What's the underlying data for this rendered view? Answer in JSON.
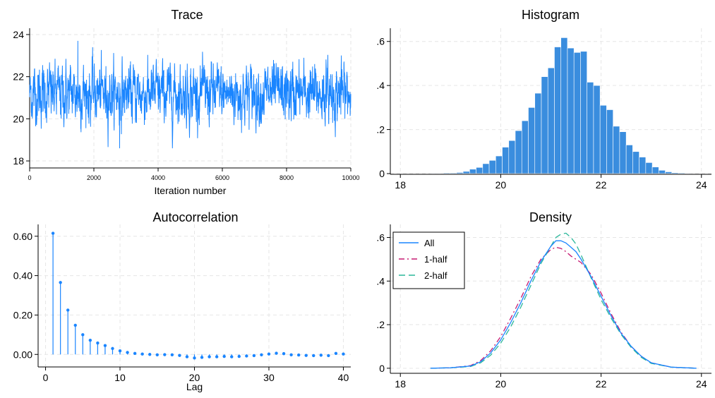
{
  "chart_data": [
    {
      "type": "line",
      "title": "Trace",
      "xlabel": "Iteration number",
      "ylabel": "",
      "xlim": [
        0,
        10000
      ],
      "ylim": [
        17.7,
        24.3
      ],
      "xticks": [
        0,
        2000,
        4000,
        6000,
        8000,
        10000
      ],
      "xtick_labels": [
        "0",
        "2000",
        "4000",
        "6000",
        "8000",
        "10000"
      ],
      "yticks": [
        18,
        20,
        22,
        24
      ],
      "ytick_labels": [
        "18",
        "20",
        "22",
        "24"
      ],
      "series": [
        {
          "color": "#1a85ff",
          "mean": 21.2,
          "min": 18.6,
          "max": 23.7,
          "n": 10000
        }
      ],
      "grid": true
    },
    {
      "type": "bar",
      "title": "Histogram",
      "xlabel": "",
      "ylabel": "",
      "xlim": [
        17.8,
        24.2
      ],
      "ylim": [
        0,
        0.66
      ],
      "xticks": [
        18,
        20,
        22,
        24
      ],
      "xtick_labels": [
        "18",
        "20",
        "22",
        "24"
      ],
      "yticks": [
        0,
        0.2,
        0.4,
        0.6
      ],
      "ytick_labels": [
        "0",
        ".2",
        ".4",
        ".6"
      ],
      "bins": [
        {
          "x0": 18.6,
          "x1": 18.73,
          "value": 0.002
        },
        {
          "x0": 18.73,
          "x1": 18.86,
          "value": 0.002
        },
        {
          "x0": 18.86,
          "x1": 18.99,
          "value": 0.003
        },
        {
          "x0": 18.99,
          "x1": 19.12,
          "value": 0.003
        },
        {
          "x0": 19.12,
          "x1": 19.25,
          "value": 0.005
        },
        {
          "x0": 19.25,
          "x1": 19.38,
          "value": 0.01
        },
        {
          "x0": 19.38,
          "x1": 19.51,
          "value": 0.02
        },
        {
          "x0": 19.51,
          "x1": 19.64,
          "value": 0.028
        },
        {
          "x0": 19.64,
          "x1": 19.77,
          "value": 0.045
        },
        {
          "x0": 19.77,
          "x1": 19.9,
          "value": 0.06
        },
        {
          "x0": 19.9,
          "x1": 20.03,
          "value": 0.08
        },
        {
          "x0": 20.03,
          "x1": 20.16,
          "value": 0.12
        },
        {
          "x0": 20.16,
          "x1": 20.29,
          "value": 0.15
        },
        {
          "x0": 20.29,
          "x1": 20.42,
          "value": 0.195
        },
        {
          "x0": 20.42,
          "x1": 20.55,
          "value": 0.24
        },
        {
          "x0": 20.55,
          "x1": 20.68,
          "value": 0.3
        },
        {
          "x0": 20.68,
          "x1": 20.81,
          "value": 0.365
        },
        {
          "x0": 20.81,
          "x1": 20.94,
          "value": 0.44
        },
        {
          "x0": 20.94,
          "x1": 21.07,
          "value": 0.48
        },
        {
          "x0": 21.07,
          "x1": 21.2,
          "value": 0.575
        },
        {
          "x0": 21.2,
          "x1": 21.33,
          "value": 0.617
        },
        {
          "x0": 21.33,
          "x1": 21.46,
          "value": 0.57
        },
        {
          "x0": 21.46,
          "x1": 21.59,
          "value": 0.55
        },
        {
          "x0": 21.59,
          "x1": 21.72,
          "value": 0.555
        },
        {
          "x0": 21.72,
          "x1": 21.85,
          "value": 0.415
        },
        {
          "x0": 21.85,
          "x1": 21.98,
          "value": 0.4
        },
        {
          "x0": 21.98,
          "x1": 22.11,
          "value": 0.31
        },
        {
          "x0": 22.11,
          "x1": 22.24,
          "value": 0.29
        },
        {
          "x0": 22.24,
          "x1": 22.37,
          "value": 0.215
        },
        {
          "x0": 22.37,
          "x1": 22.5,
          "value": 0.19
        },
        {
          "x0": 22.5,
          "x1": 22.63,
          "value": 0.13
        },
        {
          "x0": 22.63,
          "x1": 22.76,
          "value": 0.1
        },
        {
          "x0": 22.76,
          "x1": 22.89,
          "value": 0.075
        },
        {
          "x0": 22.89,
          "x1": 23.02,
          "value": 0.05
        },
        {
          "x0": 23.02,
          "x1": 23.15,
          "value": 0.03
        },
        {
          "x0": 23.15,
          "x1": 23.28,
          "value": 0.015
        },
        {
          "x0": 23.28,
          "x1": 23.41,
          "value": 0.008
        },
        {
          "x0": 23.41,
          "x1": 23.54,
          "value": 0.004
        },
        {
          "x0": 23.54,
          "x1": 23.67,
          "value": 0.003
        },
        {
          "x0": 23.67,
          "x1": 23.8,
          "value": 0.002
        }
      ],
      "color": "#3a8dde",
      "grid": true
    },
    {
      "type": "bar",
      "title": "Autocorrelation",
      "xlabel": "Lag",
      "ylabel": "",
      "xlim": [
        -1,
        41
      ],
      "ylim": [
        -0.06,
        0.66
      ],
      "xticks": [
        0,
        10,
        20,
        30,
        40
      ],
      "xtick_labels": [
        "0",
        "10",
        "20",
        "30",
        "40"
      ],
      "yticks": [
        0,
        0.2,
        0.4,
        0.6
      ],
      "ytick_labels": [
        "0.00",
        "0.20",
        "0.40",
        "0.60"
      ],
      "lags": [
        1,
        2,
        3,
        4,
        5,
        6,
        7,
        8,
        9,
        10,
        11,
        12,
        13,
        14,
        15,
        16,
        17,
        18,
        19,
        20,
        21,
        22,
        23,
        24,
        25,
        26,
        27,
        28,
        29,
        30,
        31,
        32,
        33,
        34,
        35,
        36,
        37,
        38,
        39,
        40
      ],
      "values": [
        0.615,
        0.365,
        0.225,
        0.148,
        0.1,
        0.072,
        0.058,
        0.045,
        0.03,
        0.018,
        0.01,
        0.005,
        0.002,
        0.0,
        -0.002,
        -0.001,
        -0.002,
        -0.005,
        -0.012,
        -0.018,
        -0.015,
        -0.012,
        -0.012,
        -0.01,
        -0.012,
        -0.01,
        -0.008,
        -0.006,
        -0.002,
        0.002,
        0.006,
        0.004,
        -0.002,
        -0.003,
        -0.005,
        -0.006,
        -0.004,
        -0.006,
        0.005,
        0.002
      ],
      "color": "#1a85ff",
      "grid": true
    },
    {
      "type": "line",
      "title": "Density",
      "xlabel": "",
      "ylabel": "",
      "xlim": [
        17.8,
        24.2
      ],
      "ylim": [
        -0.02,
        0.66
      ],
      "xticks": [
        18,
        20,
        22,
        24
      ],
      "xtick_labels": [
        "18",
        "20",
        "22",
        "24"
      ],
      "yticks": [
        0,
        0.2,
        0.4,
        0.6
      ],
      "ytick_labels": [
        "0",
        ".2",
        ".4",
        ".6"
      ],
      "x": [
        18.6,
        19.0,
        19.4,
        19.6,
        19.8,
        20.0,
        20.2,
        20.4,
        20.6,
        20.8,
        21.0,
        21.1,
        21.2,
        21.3,
        21.4,
        21.5,
        21.6,
        21.8,
        22.0,
        22.2,
        22.4,
        22.6,
        22.8,
        23.0,
        23.4,
        23.9
      ],
      "series": [
        {
          "name": "All",
          "color": "#1a85ff",
          "dash": "solid",
          "values": [
            0.0,
            0.002,
            0.01,
            0.03,
            0.07,
            0.13,
            0.21,
            0.3,
            0.4,
            0.49,
            0.56,
            0.585,
            0.585,
            0.575,
            0.555,
            0.535,
            0.5,
            0.42,
            0.33,
            0.24,
            0.16,
            0.1,
            0.055,
            0.025,
            0.005,
            0.0
          ]
        },
        {
          "name": "1-half",
          "color": "#c61a72",
          "dash": "dashdot",
          "values": [
            0.0,
            0.002,
            0.012,
            0.035,
            0.08,
            0.145,
            0.23,
            0.32,
            0.42,
            0.5,
            0.545,
            0.555,
            0.55,
            0.535,
            0.515,
            0.5,
            0.485,
            0.43,
            0.345,
            0.25,
            0.165,
            0.1,
            0.055,
            0.025,
            0.005,
            0.0
          ]
        },
        {
          "name": "2-half",
          "color": "#2ab79a",
          "dash": "dashed",
          "values": [
            0.0,
            0.002,
            0.008,
            0.025,
            0.06,
            0.115,
            0.19,
            0.28,
            0.38,
            0.48,
            0.56,
            0.6,
            0.615,
            0.62,
            0.6,
            0.57,
            0.52,
            0.415,
            0.315,
            0.23,
            0.155,
            0.095,
            0.05,
            0.022,
            0.005,
            0.0
          ]
        }
      ],
      "legend": "top-left",
      "grid": true
    }
  ]
}
